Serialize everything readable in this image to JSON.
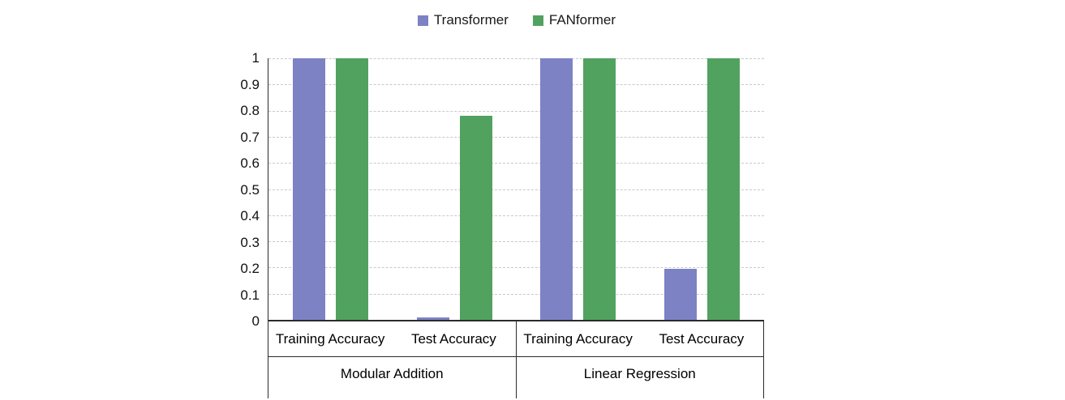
{
  "chart_data": {
    "type": "bar",
    "title": "",
    "legend_position": "top-center",
    "grid": "horizontal-dashed",
    "groups": [
      "Modular Addition",
      "Linear Regression"
    ],
    "subcategories_per_group": [
      "Training Accuracy",
      "Test Accuracy"
    ],
    "categories": [
      "Modular Addition / Training Accuracy",
      "Modular Addition / Test Accuracy",
      "Linear Regression / Training Accuracy",
      "Linear Regression / Test Accuracy"
    ],
    "series": [
      {
        "name": "Transformer",
        "color": "#7d82c4",
        "values": [
          1.0,
          0.01,
          1.0,
          0.195
        ]
      },
      {
        "name": "FANformer",
        "color": "#51a25f",
        "values": [
          1.0,
          0.78,
          1.0,
          1.0
        ]
      }
    ],
    "ylim": [
      0,
      1
    ],
    "yticks": [
      1,
      0.9,
      0.8,
      0.7,
      0.6,
      0.5,
      0.4,
      0.3,
      0.2,
      0.1,
      0
    ],
    "ytick_labels": [
      "1",
      "0.9",
      "0.8",
      "0.7",
      "0.6",
      "0.5",
      "0.4",
      "0.3",
      "0.2",
      "0.1",
      "0"
    ]
  }
}
